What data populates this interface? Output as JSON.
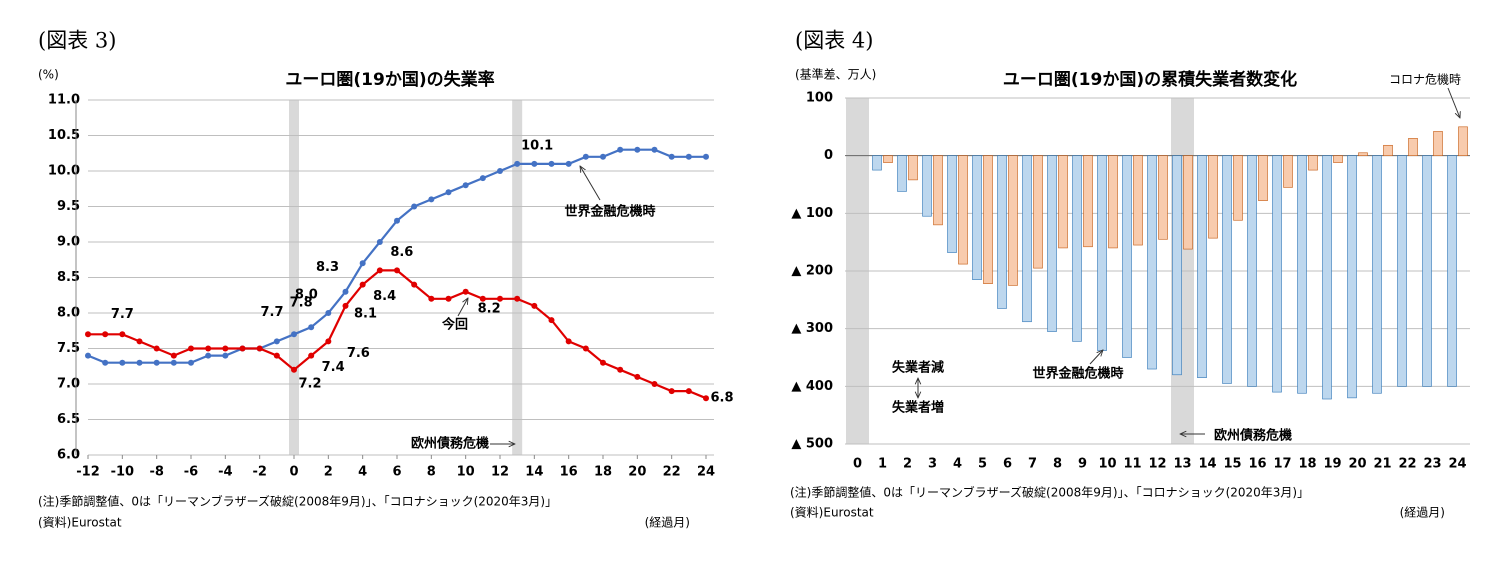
{
  "chart_data": [
    {
      "type": "line",
      "figure_label": "(図表 3)",
      "title": "ユーロ圏(19か国)の失業率",
      "y_unit": "(%)",
      "x_unit": "(経過月)",
      "note": "(注)季節調整値、0は「リーマンブラザーズ破綻(2008年9月)」、「コロナショック(2020年3月)」",
      "source": "(資料)Eurostat",
      "annotations": [
        "欧州債務危機"
      ],
      "shaded_x": [
        0,
        13
      ],
      "x": [
        -12,
        -11,
        -10,
        -9,
        -8,
        -7,
        -6,
        -5,
        -4,
        -3,
        -2,
        -1,
        0,
        1,
        2,
        3,
        4,
        5,
        6,
        7,
        8,
        9,
        10,
        11,
        12,
        13,
        14,
        15,
        16,
        17,
        18,
        19,
        20,
        21,
        22,
        23,
        24
      ],
      "series": [
        {
          "name": "世界金融危機時",
          "color": "#4472c4",
          "values": [
            7.4,
            7.3,
            7.3,
            7.3,
            7.3,
            7.3,
            7.3,
            7.4,
            7.4,
            7.5,
            7.5,
            7.6,
            7.7,
            7.8,
            8.0,
            8.3,
            8.7,
            9.0,
            9.3,
            9.5,
            9.6,
            9.7,
            9.8,
            9.9,
            10.0,
            10.1,
            10.1,
            10.1,
            10.1,
            10.2,
            10.2,
            10.3,
            10.3,
            10.3,
            10.2,
            10.2,
            10.2
          ],
          "value_labels": [
            null,
            null,
            null,
            null,
            null,
            null,
            null,
            null,
            null,
            null,
            null,
            null,
            "7.7",
            "7.8",
            "8.0",
            "8.3",
            null,
            null,
            null,
            null,
            null,
            null,
            null,
            null,
            null,
            "10.1",
            null,
            null,
            null,
            null,
            null,
            null,
            null,
            null,
            null,
            null,
            null
          ]
        },
        {
          "name": "今回",
          "color": "#e00000",
          "values": [
            7.7,
            7.7,
            7.7,
            7.6,
            7.5,
            7.4,
            7.5,
            7.5,
            7.5,
            7.5,
            7.5,
            7.4,
            7.2,
            7.4,
            7.6,
            8.1,
            8.4,
            8.6,
            8.6,
            8.4,
            8.2,
            8.2,
            8.3,
            8.2,
            8.2,
            8.2,
            8.1,
            7.9,
            7.6,
            7.5,
            7.3,
            7.2,
            7.1,
            7.0,
            6.9,
            6.9,
            6.8
          ],
          "value_labels": [
            null,
            null,
            "7.7",
            null,
            null,
            null,
            null,
            null,
            null,
            null,
            null,
            null,
            "7.2",
            "7.4",
            "7.6",
            "8.1",
            "8.4",
            "8.6",
            null,
            null,
            null,
            null,
            null,
            null,
            null,
            "8.2",
            null,
            null,
            null,
            null,
            null,
            null,
            null,
            null,
            null,
            null,
            "6.8"
          ]
        }
      ],
      "xlim": [
        -12,
        24
      ],
      "xticks": [
        -12,
        -10,
        -8,
        -6,
        -4,
        -2,
        0,
        2,
        4,
        6,
        8,
        10,
        12,
        14,
        16,
        18,
        20,
        22,
        24
      ],
      "ylim": [
        6,
        11
      ],
      "yticks": [
        {
          "value": 6,
          "label": "6.0"
        },
        {
          "value": 6.5,
          "label": "6.5"
        },
        {
          "value": 7,
          "label": "7.0"
        },
        {
          "value": 7.5,
          "label": "7.5"
        },
        {
          "value": 8,
          "label": "8.0"
        },
        {
          "value": 8.5,
          "label": "8.5"
        },
        {
          "value": 9,
          "label": "9.0"
        },
        {
          "value": 9.5,
          "label": "9.5"
        },
        {
          "value": 10,
          "label": "10.0"
        },
        {
          "value": 10.5,
          "label": "10.5"
        },
        {
          "value": 11,
          "label": "11.0"
        }
      ],
      "grid": true
    },
    {
      "type": "bar",
      "figure_label": "(図表 4)",
      "title": "ユーロ圏(19か国)の累積失業者数変化",
      "y_unit": "(基準差、万人)",
      "x_unit": "(経過月)",
      "note": "(注)季節調整値、0は「リーマンブラザーズ破綻(2008年9月)」、「コロナショック(2020年3月)」",
      "source": "(資料)Eurostat",
      "annotations": [
        "欧州債務危機",
        "失業者減",
        "失業者増"
      ],
      "shaded_categories": [
        0,
        13
      ],
      "categories": [
        0,
        1,
        2,
        3,
        4,
        5,
        6,
        7,
        8,
        9,
        10,
        11,
        12,
        13,
        14,
        15,
        16,
        17,
        18,
        19,
        20,
        21,
        22,
        23,
        24
      ],
      "series": [
        {
          "name": "世界金融危機時",
          "color": "#bdd7ee",
          "values": [
            null,
            -25,
            -62,
            -105,
            -168,
            -215,
            -265,
            -288,
            -305,
            -322,
            -338,
            -350,
            -370,
            -380,
            -385,
            -395,
            -400,
            -410,
            -412,
            -422,
            -420,
            -412,
            -400,
            -400,
            -400
          ]
        },
        {
          "name": "コロナ危機時",
          "color": "#f8cbad",
          "values": [
            null,
            -12,
            -42,
            -120,
            -188,
            -222,
            -225,
            -195,
            -160,
            -158,
            -160,
            -155,
            -145,
            -162,
            -143,
            -112,
            -78,
            -55,
            -25,
            -12,
            5,
            18,
            30,
            42,
            50
          ]
        }
      ],
      "ylim": [
        -500,
        100
      ],
      "yticks": [
        {
          "value": -500,
          "label": "▲ 500"
        },
        {
          "value": -400,
          "label": "▲ 400"
        },
        {
          "value": -300,
          "label": "▲ 300"
        },
        {
          "value": -200,
          "label": "▲ 200"
        },
        {
          "value": -100,
          "label": "▲ 100"
        },
        0,
        100
      ],
      "grid": true
    }
  ]
}
